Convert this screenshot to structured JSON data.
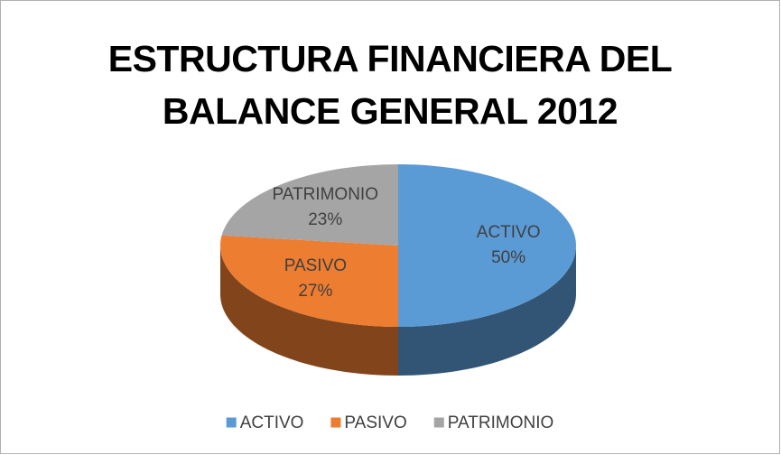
{
  "chart_data": {
    "type": "pie",
    "title": "ESTRUCTURA FINANCIERA DEL BALANCE GENERAL 2012",
    "categories": [
      "ACTIVO",
      "PASIVO",
      "PATRIMONIO"
    ],
    "values": [
      50,
      27,
      23
    ],
    "value_labels": [
      "50%",
      "27%",
      "23%"
    ],
    "colors": [
      "#5b9bd5",
      "#ed7d31",
      "#a5a5a5"
    ],
    "legend": "bottom"
  }
}
